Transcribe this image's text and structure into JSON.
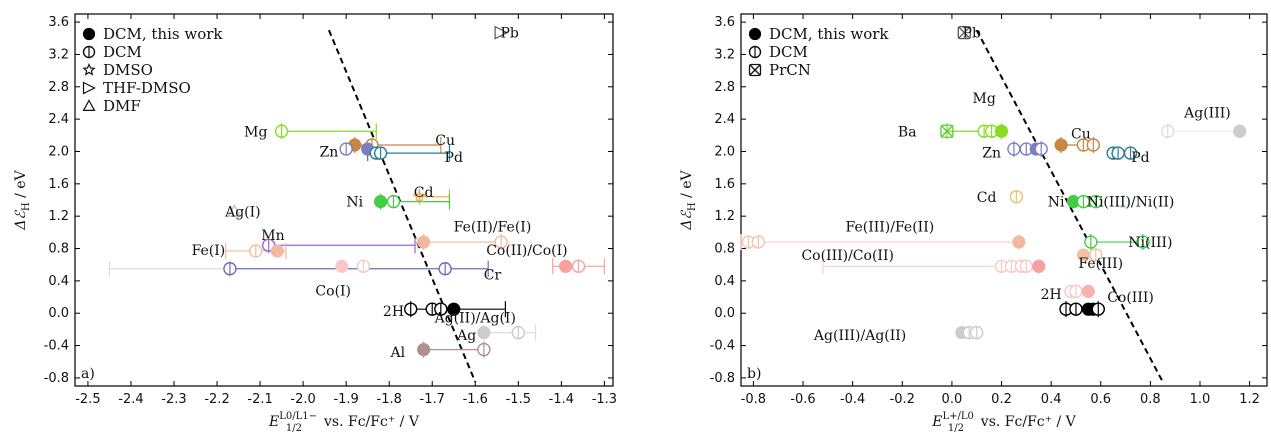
{
  "chart_data": [
    {
      "type": "scatter",
      "panel_label": "a)",
      "xlabel_main": "E",
      "xlabel_sub": "1/2",
      "xlabel_sup": "L0/L1−",
      "xlabel_rest": " vs. Fc/Fc⁺ / V",
      "ylabel_main": "Δℰ",
      "ylabel_sub": "H",
      "ylabel_rest": " / eV",
      "xlim": [
        -2.53,
        -1.28
      ],
      "ylim": [
        -0.9,
        3.7
      ],
      "xticks": [
        "-2.5",
        "-2.4",
        "-2.3",
        "-2.2",
        "-2.1",
        "-2.0",
        "-1.9",
        "-1.8",
        "-1.7",
        "-1.6",
        "-1.5",
        "-1.4",
        "-1.3"
      ],
      "xtick_values": [
        -2.5,
        -2.4,
        -2.3,
        -2.2,
        -2.1,
        -2.0,
        -1.9,
        -1.8,
        -1.7,
        -1.6,
        -1.5,
        -1.4,
        -1.3
      ],
      "yticks": [
        "-0.8",
        "-0.4",
        "0.0",
        "0.4",
        "0.8",
        "1.2",
        "1.6",
        "2.0",
        "2.4",
        "2.8",
        "3.2",
        "3.6"
      ],
      "ytick_values": [
        -0.8,
        -0.4,
        0.0,
        0.4,
        0.8,
        1.2,
        1.6,
        2.0,
        2.4,
        2.8,
        3.2,
        3.6
      ],
      "legend": [
        {
          "marker": "filled-circle",
          "label": "DCM, this work"
        },
        {
          "marker": "open-circle",
          "label": "DCM"
        },
        {
          "marker": "star",
          "label": "DMSO"
        },
        {
          "marker": "triangle-right",
          "label": "THF-DMSO"
        },
        {
          "marker": "triangle-up",
          "label": "DMF"
        }
      ],
      "trend_line": [
        [
          -1.94,
          3.5
        ],
        [
          -1.6,
          -0.85
        ]
      ],
      "points": [
        {
          "x": -2.05,
          "y": 2.25,
          "m": "open-circle",
          "c": "#88dd22"
        },
        {
          "x": -1.88,
          "y": 2.08,
          "m": "filled-circle",
          "c": "#c88640"
        },
        {
          "x": -1.84,
          "y": 2.08,
          "m": "open-circle",
          "c": "#c88640"
        },
        {
          "x": -1.9,
          "y": 2.03,
          "m": "open-circle",
          "c": "#7a7fc0"
        },
        {
          "x": -1.85,
          "y": 2.03,
          "m": "filled-circle",
          "c": "#7a7fc0"
        },
        {
          "x": -1.83,
          "y": 1.98,
          "m": "open-circle",
          "c": "#2a7a98"
        },
        {
          "x": -1.82,
          "y": 1.98,
          "m": "open-circle",
          "c": "#2a7a98"
        },
        {
          "x": -1.73,
          "y": 1.44,
          "m": "star",
          "c": "#f0b050"
        },
        {
          "x": -1.82,
          "y": 1.38,
          "m": "filled-circle",
          "c": "#44cc44"
        },
        {
          "x": -1.79,
          "y": 1.38,
          "m": "open-circle",
          "c": "#44cc44"
        },
        {
          "x": -2.16,
          "y": 1.26,
          "m": "triangle-up",
          "c": "#bbbbbb"
        },
        {
          "x": -2.08,
          "y": 0.84,
          "m": "open-circle",
          "c": "#9966cc"
        },
        {
          "x": -2.06,
          "y": 0.77,
          "m": "filled-circle",
          "c": "#f5b8a0"
        },
        {
          "x": -2.11,
          "y": 0.77,
          "m": "open-circle",
          "c": "#f5b8a0"
        },
        {
          "x": -1.72,
          "y": 0.88,
          "m": "filled-circle",
          "c": "#f0b8a0"
        },
        {
          "x": -1.54,
          "y": 0.88,
          "m": "open-circle",
          "c": "#f0b8a0"
        },
        {
          "x": -2.17,
          "y": 0.55,
          "m": "open-circle",
          "c": "#6a70b8"
        },
        {
          "x": -1.67,
          "y": 0.55,
          "m": "open-circle",
          "c": "#6a70b8"
        },
        {
          "x": -1.91,
          "y": 0.58,
          "m": "filled-circle",
          "c": "#f8c8c8"
        },
        {
          "x": -1.86,
          "y": 0.58,
          "m": "open-circle",
          "c": "#f8c8c8"
        },
        {
          "x": -1.39,
          "y": 0.58,
          "m": "filled-circle",
          "c": "#f8a0a0"
        },
        {
          "x": -1.36,
          "y": 0.58,
          "m": "open-circle",
          "c": "#f8a0a0"
        },
        {
          "x": -1.75,
          "y": 0.05,
          "m": "open-circle",
          "c": "#000000"
        },
        {
          "x": -1.7,
          "y": 0.05,
          "m": "open-circle",
          "c": "#000000"
        },
        {
          "x": -1.68,
          "y": 0.05,
          "m": "open-circle",
          "c": "#000000"
        },
        {
          "x": -1.65,
          "y": 0.05,
          "m": "filled-circle",
          "c": "#000000"
        },
        {
          "x": -1.58,
          "y": -0.24,
          "m": "filled-circle",
          "c": "#cccccc"
        },
        {
          "x": -1.5,
          "y": -0.24,
          "m": "open-circle",
          "c": "#cccccc"
        },
        {
          "x": -1.72,
          "y": -0.45,
          "m": "filled-circle",
          "c": "#b09090"
        },
        {
          "x": -1.58,
          "y": -0.45,
          "m": "open-circle",
          "c": "#b09090"
        },
        {
          "x": -1.54,
          "y": 3.47,
          "m": "triangle-right",
          "c": "#555555"
        }
      ],
      "hbars": [
        {
          "x1": -2.05,
          "x2": -1.83,
          "y": 2.25,
          "c": "#88dd22"
        },
        {
          "x1": -1.88,
          "x2": -1.68,
          "y": 2.08,
          "c": "#c88640"
        },
        {
          "x1": -1.85,
          "x2": -1.66,
          "y": 1.98,
          "c": "#2a7a98"
        },
        {
          "x1": -1.73,
          "x2": -1.66,
          "y": 1.44,
          "c": "#f0b050"
        },
        {
          "x1": -1.82,
          "x2": -1.66,
          "y": 1.38,
          "c": "#44cc44"
        },
        {
          "x1": -2.08,
          "x2": -1.74,
          "y": 0.84,
          "c": "#9966cc"
        },
        {
          "x1": -2.18,
          "x2": -2.04,
          "y": 0.77,
          "c": "#f5b8a0"
        },
        {
          "x1": -1.72,
          "x2": -1.54,
          "y": 0.88,
          "c": "#f0b8a0"
        },
        {
          "x1": -2.17,
          "x2": -1.57,
          "y": 0.55,
          "c": "#6a70b8"
        },
        {
          "x1": -2.45,
          "x2": -2.17,
          "y": 0.55,
          "c": "#dddddd"
        },
        {
          "x1": -1.42,
          "x2": -1.3,
          "y": 0.58,
          "c": "#f8a0a0"
        },
        {
          "x1": -1.75,
          "x2": -1.53,
          "y": 0.05,
          "c": "#000000"
        },
        {
          "x1": -1.58,
          "x2": -1.46,
          "y": -0.24,
          "c": "#dddddd"
        },
        {
          "x1": -1.72,
          "x2": -1.58,
          "y": -0.45,
          "c": "#b09090"
        }
      ],
      "labels": [
        {
          "t": "Pb",
          "x": -1.52,
          "y": 3.47
        },
        {
          "t": "Mg",
          "x": -2.11,
          "y": 2.25
        },
        {
          "t": "Cu",
          "x": -1.67,
          "y": 2.14
        },
        {
          "t": "Zn",
          "x": -1.94,
          "y": 2.0
        },
        {
          "t": "Pd",
          "x": -1.65,
          "y": 1.93
        },
        {
          "t": "Cd",
          "x": -1.72,
          "y": 1.5
        },
        {
          "t": "Ni",
          "x": -1.88,
          "y": 1.38
        },
        {
          "t": "Ag(I)",
          "x": -2.14,
          "y": 1.26
        },
        {
          "t": "Mn",
          "x": -2.07,
          "y": 0.97
        },
        {
          "t": "Fe(II)/Fe(I)",
          "x": -1.56,
          "y": 1.07
        },
        {
          "t": "Fe(I)",
          "x": -2.22,
          "y": 0.78
        },
        {
          "t": "Co(II)/Co(I)",
          "x": -1.48,
          "y": 0.78
        },
        {
          "t": "Cr",
          "x": -1.56,
          "y": 0.48
        },
        {
          "t": "Co(I)",
          "x": -1.93,
          "y": 0.28
        },
        {
          "t": "2H",
          "x": -1.79,
          "y": 0.03
        },
        {
          "t": "Ag(II)/Ag(I)",
          "x": -1.6,
          "y": -0.05
        },
        {
          "t": "Ag",
          "x": -1.62,
          "y": -0.27
        },
        {
          "t": "Al",
          "x": -1.78,
          "y": -0.48
        }
      ]
    },
    {
      "type": "scatter",
      "panel_label": "b)",
      "xlabel_main": "E",
      "xlabel_sub": "1/2",
      "xlabel_sup": "L+/L0",
      "xlabel_rest": " vs. Fc/Fc⁺ / V",
      "ylabel_main": "Δℰ",
      "ylabel_sub": "H",
      "ylabel_rest": " / eV",
      "xlim": [
        -0.85,
        1.27
      ],
      "ylim": [
        -0.9,
        3.7
      ],
      "xticks": [
        "-0.8",
        "-0.6",
        "-0.4",
        "-0.2",
        "0.0",
        "0.2",
        "0.4",
        "0.6",
        "0.8",
        "1.0",
        "1.2"
      ],
      "xtick_values": [
        -0.8,
        -0.6,
        -0.4,
        -0.2,
        0.0,
        0.2,
        0.4,
        0.6,
        0.8,
        1.0,
        1.2
      ],
      "yticks": [
        "-0.8",
        "-0.4",
        "0.0",
        "0.4",
        "0.8",
        "1.2",
        "1.6",
        "2.0",
        "2.4",
        "2.8",
        "3.2",
        "3.6"
      ],
      "ytick_values": [
        -0.8,
        -0.4,
        0.0,
        0.4,
        0.8,
        1.2,
        1.6,
        2.0,
        2.4,
        2.8,
        3.2,
        3.6
      ],
      "legend": [
        {
          "marker": "filled-circle",
          "label": "DCM, this work"
        },
        {
          "marker": "open-circle",
          "label": "DCM"
        },
        {
          "marker": "crossed-square",
          "label": "PrCN"
        }
      ],
      "trend_line": [
        [
          0.1,
          3.5
        ],
        [
          0.85,
          -0.85
        ]
      ],
      "points": [
        {
          "x": 0.05,
          "y": 3.47,
          "m": "crossed-square",
          "c": "#555555"
        },
        {
          "x": -0.02,
          "y": 2.25,
          "m": "crossed-square",
          "c": "#55cc33"
        },
        {
          "x": 0.13,
          "y": 2.25,
          "m": "open-circle",
          "c": "#88dd22"
        },
        {
          "x": 0.16,
          "y": 2.25,
          "m": "open-circle",
          "c": "#88dd22"
        },
        {
          "x": 0.2,
          "y": 2.25,
          "m": "filled-circle",
          "c": "#88dd22"
        },
        {
          "x": 0.87,
          "y": 2.25,
          "m": "open-circle",
          "c": "#dddddd"
        },
        {
          "x": 1.16,
          "y": 2.25,
          "m": "filled-circle",
          "c": "#cccccc"
        },
        {
          "x": 0.44,
          "y": 2.08,
          "m": "filled-circle",
          "c": "#c88640"
        },
        {
          "x": 0.53,
          "y": 2.08,
          "m": "open-circle",
          "c": "#c88640"
        },
        {
          "x": 0.57,
          "y": 2.08,
          "m": "open-circle",
          "c": "#c88640"
        },
        {
          "x": 0.25,
          "y": 2.03,
          "m": "open-circle",
          "c": "#7a7fc0"
        },
        {
          "x": 0.3,
          "y": 2.03,
          "m": "open-circle",
          "c": "#7a7fc0"
        },
        {
          "x": 0.34,
          "y": 2.03,
          "m": "filled-circle",
          "c": "#7a7fc0"
        },
        {
          "x": 0.36,
          "y": 2.03,
          "m": "open-circle",
          "c": "#7a7fc0"
        },
        {
          "x": 0.65,
          "y": 1.98,
          "m": "open-circle",
          "c": "#2a7a98"
        },
        {
          "x": 0.67,
          "y": 1.98,
          "m": "open-circle",
          "c": "#2a7a98"
        },
        {
          "x": 0.72,
          "y": 1.98,
          "m": "open-circle",
          "c": "#2a7a98"
        },
        {
          "x": 0.26,
          "y": 1.44,
          "m": "open-circle",
          "c": "#f0c070"
        },
        {
          "x": 0.49,
          "y": 1.38,
          "m": "filled-circle",
          "c": "#44cc44"
        },
        {
          "x": 0.53,
          "y": 1.38,
          "m": "open-circle",
          "c": "#44cc44"
        },
        {
          "x": 0.58,
          "y": 1.38,
          "m": "open-circle",
          "c": "#44cc44"
        },
        {
          "x": 0.69,
          "y": 1.38,
          "m": "open-circle",
          "c": "#cceecc"
        },
        {
          "x": -0.82,
          "y": 0.88,
          "m": "open-circle",
          "c": "#f8c0b0"
        },
        {
          "x": -0.78,
          "y": 0.88,
          "m": "open-circle",
          "c": "#f8c0b0"
        },
        {
          "x": 0.27,
          "y": 0.88,
          "m": "filled-circle",
          "c": "#f0b8a0"
        },
        {
          "x": 0.56,
          "y": 0.88,
          "m": "open-circle",
          "c": "#44cc44"
        },
        {
          "x": 0.77,
          "y": 0.88,
          "m": "open-circle",
          "c": "#44cc44"
        },
        {
          "x": 0.53,
          "y": 0.72,
          "m": "filled-circle",
          "c": "#f5c0a8"
        },
        {
          "x": 0.58,
          "y": 0.72,
          "m": "open-circle",
          "c": "#f5c0a8"
        },
        {
          "x": 0.2,
          "y": 0.58,
          "m": "open-circle",
          "c": "#f8c8c8"
        },
        {
          "x": 0.24,
          "y": 0.58,
          "m": "open-circle",
          "c": "#f8c8c8"
        },
        {
          "x": 0.28,
          "y": 0.58,
          "m": "open-circle",
          "c": "#f8c8c8"
        },
        {
          "x": 0.3,
          "y": 0.58,
          "m": "open-circle",
          "c": "#f8c8c8"
        },
        {
          "x": 0.35,
          "y": 0.58,
          "m": "filled-circle",
          "c": "#f8a0a0"
        },
        {
          "x": 0.48,
          "y": 0.27,
          "m": "open-circle",
          "c": "#f8c8c8"
        },
        {
          "x": 0.5,
          "y": 0.27,
          "m": "open-circle",
          "c": "#f8c8c8"
        },
        {
          "x": 0.55,
          "y": 0.27,
          "m": "filled-circle",
          "c": "#f8b0b0"
        },
        {
          "x": 0.46,
          "y": 0.05,
          "m": "open-circle",
          "c": "#000000"
        },
        {
          "x": 0.5,
          "y": 0.05,
          "m": "open-circle",
          "c": "#000000"
        },
        {
          "x": 0.55,
          "y": 0.05,
          "m": "filled-circle",
          "c": "#000000"
        },
        {
          "x": 0.57,
          "y": 0.05,
          "m": "filled-circle",
          "c": "#000000"
        },
        {
          "x": 0.59,
          "y": 0.05,
          "m": "open-circle",
          "c": "#000000"
        },
        {
          "x": 0.04,
          "y": -0.24,
          "m": "filled-circle",
          "c": "#cccccc"
        },
        {
          "x": 0.07,
          "y": -0.24,
          "m": "open-circle",
          "c": "#cccccc"
        },
        {
          "x": 0.1,
          "y": -0.24,
          "m": "open-circle",
          "c": "#cccccc"
        }
      ],
      "hbars": [
        {
          "x1": -0.02,
          "x2": 0.2,
          "y": 2.25,
          "c": "#88dd22"
        },
        {
          "x1": 0.87,
          "x2": 1.16,
          "y": 2.25,
          "c": "#eeeeee"
        },
        {
          "x1": 0.44,
          "x2": 0.57,
          "y": 2.08,
          "c": "#c88640"
        },
        {
          "x1": 0.25,
          "x2": 0.36,
          "y": 2.03,
          "c": "#7a7fc0"
        },
        {
          "x1": -0.85,
          "x2": 0.27,
          "y": 0.88,
          "c": "#f8d0c0"
        },
        {
          "x1": 0.56,
          "x2": 0.77,
          "y": 0.88,
          "c": "#44cc44"
        },
        {
          "x1": -0.52,
          "x2": 0.35,
          "y": 0.58,
          "c": "#f8d0d0"
        },
        {
          "x1": 0.46,
          "x2": 0.59,
          "y": 0.05,
          "c": "#000000"
        }
      ],
      "labels": [
        {
          "t": "Pb",
          "x": 0.08,
          "y": 3.47
        },
        {
          "t": "Mg",
          "x": 0.13,
          "y": 2.66
        },
        {
          "t": "Ba",
          "x": -0.18,
          "y": 2.25
        },
        {
          "t": "Ag(III)",
          "x": 1.03,
          "y": 2.48
        },
        {
          "t": "Cu",
          "x": 0.52,
          "y": 2.22
        },
        {
          "t": "Zn",
          "x": 0.16,
          "y": 1.99
        },
        {
          "t": "Pd",
          "x": 0.76,
          "y": 1.93
        },
        {
          "t": "Cd",
          "x": 0.14,
          "y": 1.44
        },
        {
          "t": "Ni",
          "x": 0.42,
          "y": 1.38
        },
        {
          "t": "Ni(III)/Ni(II)",
          "x": 0.72,
          "y": 1.38
        },
        {
          "t": "Fe(III)/Fe(II)",
          "x": -0.25,
          "y": 1.07
        },
        {
          "t": "Ni(III)",
          "x": 0.8,
          "y": 0.88
        },
        {
          "t": "Co(III)/Co(II)",
          "x": -0.42,
          "y": 0.72
        },
        {
          "t": "Fe(III)",
          "x": 0.6,
          "y": 0.62
        },
        {
          "t": "Co(III)",
          "x": 0.72,
          "y": 0.2
        },
        {
          "t": "2H",
          "x": 0.4,
          "y": 0.24
        },
        {
          "t": "Ag(III)/Ag(II)",
          "x": -0.37,
          "y": -0.27
        }
      ]
    }
  ]
}
